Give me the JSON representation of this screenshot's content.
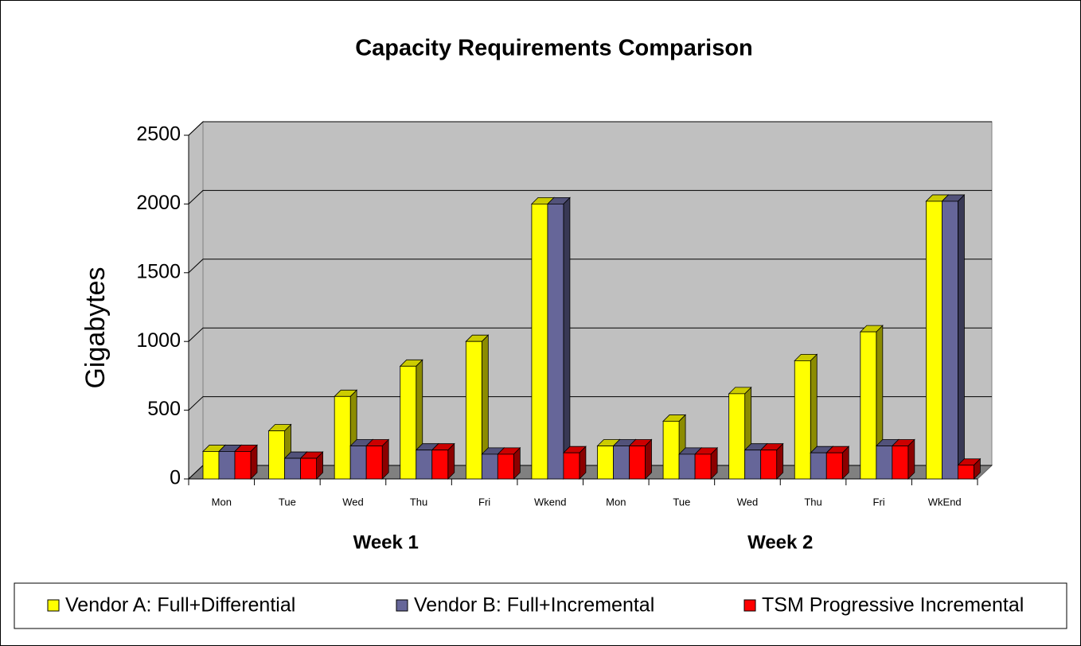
{
  "chart_data": {
    "type": "bar3d",
    "title": "Capacity Requirements Comparison",
    "ylabel": "Gigabytes",
    "categories": [
      "Mon",
      "Tue",
      "Wed",
      "Thu",
      "Fri",
      "Wkend",
      "Mon",
      "Tue",
      "Wed",
      "Thu",
      "Fri",
      "WkEnd"
    ],
    "category_groups": [
      "Week 1",
      "Week 2"
    ],
    "series": [
      {
        "name": "Vendor A: Full+Differential",
        "color": "#ffff00",
        "values": [
          200,
          350,
          600,
          820,
          1000,
          2000,
          240,
          420,
          620,
          860,
          1070,
          2020
        ]
      },
      {
        "name": "Vendor B: Full+Incremental",
        "color": "#666699",
        "values": [
          200,
          150,
          240,
          210,
          180,
          2000,
          240,
          180,
          210,
          190,
          240,
          2020
        ]
      },
      {
        "name": "TSM Progressive Incremental",
        "color": "#ff0000",
        "values": [
          200,
          150,
          240,
          210,
          180,
          190,
          240,
          180,
          210,
          190,
          240,
          100
        ]
      }
    ],
    "ylim": [
      0,
      2500
    ],
    "yticks": [
      0,
      500,
      1000,
      1500,
      2000,
      2500
    ],
    "grid": true,
    "legend": "bottom"
  }
}
